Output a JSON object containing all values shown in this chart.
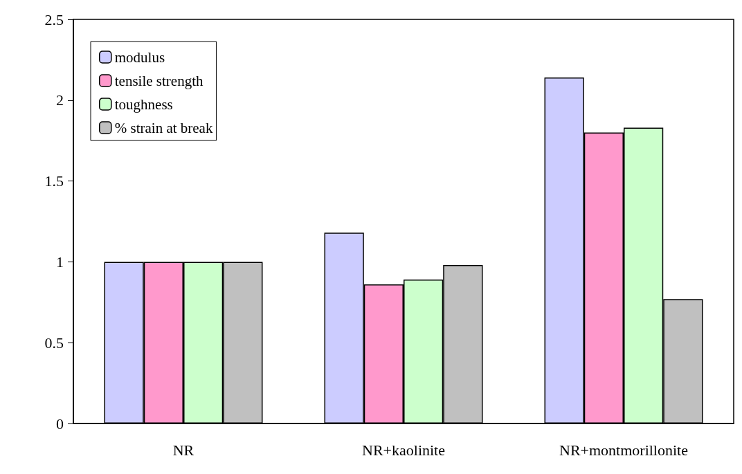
{
  "chart_data": {
    "type": "bar",
    "categories": [
      "NR",
      "NR+kaolinite",
      "NR+montmorillonite"
    ],
    "series": [
      {
        "name": "modulus",
        "color": "#ccccff",
        "values": [
          1,
          1.18,
          2.14
        ]
      },
      {
        "name": "tensile strength",
        "color": "#ff99cc",
        "values": [
          1,
          0.86,
          1.8
        ]
      },
      {
        "name": "toughness",
        "color": "#ccffcc",
        "values": [
          1,
          0.89,
          1.83
        ]
      },
      {
        "name": "% strain at break",
        "color": "#c0c0c0",
        "values": [
          1,
          0.98,
          0.77
        ]
      }
    ],
    "ylim": [
      0,
      2.5
    ],
    "yticks": [
      0,
      0.5,
      1,
      1.5,
      2,
      2.5
    ],
    "grid": false,
    "legend": "top left"
  }
}
